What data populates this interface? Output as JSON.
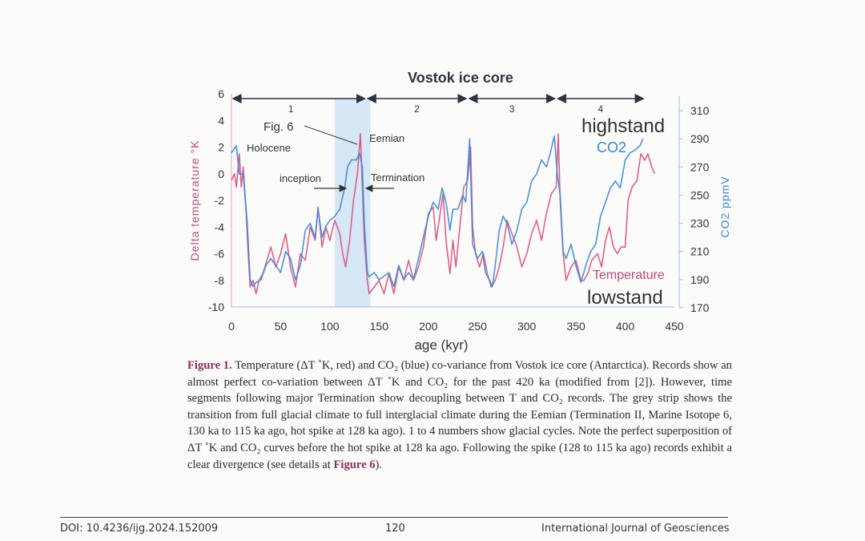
{
  "chart_data": {
    "type": "line",
    "title": "Vostok ice core",
    "xlabel": "age (kyr)",
    "ylabel": "Delta temperature °K",
    "y2label": "CO2 ppmV",
    "xlim": [
      0,
      450
    ],
    "ylim": [
      -10,
      6
    ],
    "y2lim": [
      170,
      320
    ],
    "xticks": [
      "0",
      "50",
      "100",
      "150",
      "200",
      "250",
      "300",
      "350",
      "400",
      "450"
    ],
    "yticks": [
      "-10",
      "-8",
      "-6",
      "-4",
      "-2",
      "0",
      "2",
      "4",
      "6"
    ],
    "y2ticks": [
      "170",
      "190",
      "210",
      "230",
      "250",
      "270",
      "290",
      "310"
    ],
    "grid": false,
    "colors": {
      "temperature": "#d9507e",
      "co2": "#3a86d4",
      "strip": "#cfe3f3"
    },
    "highlight_strip_kyr": [
      105,
      141
    ],
    "glacial_cycles": [
      {
        "label": "1",
        "from": 0,
        "to": 137
      },
      {
        "label": "2",
        "from": 137,
        "to": 240
      },
      {
        "label": "3",
        "from": 240,
        "to": 330
      },
      {
        "label": "4",
        "from": 330,
        "to": 420
      }
    ],
    "annotations": {
      "fig6": "Fig. 6",
      "eemian": "Eemian",
      "holocene": "Holocene",
      "inception": "inception",
      "termination": "Termination",
      "highstand": "highstand",
      "co2": "CO2",
      "temperature": "Temperature",
      "lowstand": "lowstand"
    },
    "series": [
      {
        "name": "Temperature",
        "axis": "left",
        "x": [
          0,
          3,
          5,
          8,
          10,
          12,
          15,
          17,
          19,
          22,
          25,
          28,
          32,
          36,
          40,
          45,
          50,
          55,
          60,
          65,
          70,
          75,
          80,
          85,
          88,
          92,
          96,
          100,
          105,
          110,
          113,
          116,
          120,
          124,
          128,
          131,
          133,
          135,
          138,
          140,
          145,
          150,
          155,
          160,
          165,
          170,
          175,
          180,
          185,
          190,
          195,
          200,
          205,
          208,
          212,
          215,
          218,
          222,
          225,
          228,
          232,
          236,
          240,
          243,
          245,
          248,
          252,
          256,
          260,
          264,
          268,
          272,
          276,
          280,
          285,
          290,
          295,
          300,
          305,
          310,
          315,
          320,
          325,
          330,
          332,
          334,
          337,
          340,
          345,
          350,
          355,
          358,
          362,
          366,
          372,
          376,
          380,
          384,
          388,
          392,
          396,
          400,
          403,
          407,
          412,
          416,
          420,
          423,
          427,
          430
        ],
        "y": [
          -0.5,
          0,
          -1,
          1.5,
          -1,
          0.5,
          -3,
          -6,
          -8.5,
          -8,
          -9,
          -8,
          -7.5,
          -6.5,
          -5.5,
          -7,
          -6,
          -4.5,
          -7,
          -8.5,
          -6,
          -6.5,
          -4,
          -5,
          -2.5,
          -5.5,
          -4,
          -5,
          -3.5,
          -4.5,
          -6,
          -7,
          -5,
          -2,
          0,
          3,
          -1,
          -5,
          -8,
          -9,
          -8.5,
          -8,
          -9,
          -7.5,
          -9,
          -7,
          -8,
          -6.5,
          -8,
          -7,
          -5.5,
          -3,
          -2.5,
          -5,
          -3,
          -1.5,
          -5,
          -7.5,
          -5,
          -7,
          -4,
          -1,
          -0.5,
          2,
          -4,
          -6,
          -7,
          -6,
          -7.5,
          -8.5,
          -8,
          -7,
          -5.5,
          -3.5,
          -4.5,
          -5.5,
          -7,
          -6,
          -4.5,
          -3.5,
          -5,
          -3,
          -1.5,
          -1,
          3,
          -2,
          -6,
          -8,
          -7,
          -6.5,
          -8,
          -8,
          -7.5,
          -6.5,
          -6,
          -7,
          -5,
          -4,
          -5.5,
          -6,
          -5.5,
          -5.5,
          -2,
          -1,
          -0.5,
          1.5,
          1,
          1.5,
          0.5,
          0
        ]
      },
      {
        "name": "CO2",
        "axis": "right",
        "x": [
          0,
          5,
          8,
          12,
          16,
          19,
          22,
          25,
          30,
          35,
          40,
          45,
          50,
          55,
          60,
          65,
          70,
          75,
          80,
          85,
          88,
          92,
          96,
          100,
          105,
          110,
          115,
          118,
          122,
          127,
          130,
          133,
          135,
          138,
          140,
          145,
          150,
          160,
          165,
          170,
          175,
          180,
          185,
          190,
          195,
          200,
          205,
          210,
          214,
          218,
          222,
          225,
          230,
          235,
          238,
          242,
          245,
          250,
          255,
          258,
          262,
          265,
          268,
          272,
          276,
          280,
          285,
          290,
          295,
          300,
          305,
          310,
          315,
          320,
          324,
          328,
          331,
          334,
          337,
          340,
          345,
          350,
          355,
          360,
          365,
          370,
          375,
          380,
          385,
          390,
          395,
          400,
          405,
          410,
          415,
          418
        ],
        "y": [
          280,
          285,
          265,
          265,
          230,
          190,
          185,
          188,
          190,
          200,
          205,
          200,
          195,
          210,
          205,
          190,
          200,
          225,
          230,
          220,
          240,
          220,
          228,
          232,
          235,
          240,
          255,
          270,
          275,
          275,
          280,
          270,
          230,
          195,
          192,
          195,
          190,
          195,
          185,
          200,
          190,
          195,
          190,
          205,
          220,
          235,
          245,
          240,
          255,
          245,
          225,
          240,
          240,
          250,
          245,
          290,
          215,
          205,
          210,
          195,
          190,
          185,
          200,
          225,
          235,
          230,
          215,
          225,
          240,
          245,
          260,
          265,
          275,
          270,
          280,
          292,
          265,
          250,
          210,
          205,
          215,
          200,
          188,
          200,
          210,
          215,
          235,
          245,
          255,
          260,
          255,
          275,
          280,
          282,
          285,
          290
        ]
      }
    ]
  },
  "caption": {
    "label": "Figure 1.",
    "text1": " Temperature (ΔT ˚K, red) and CO₂ (blue) co-variance from Vostok ice core (Antarctica). Records show an almost perfect co-variation between ΔT ˚K and CO₂ for the past 420 ka (modified from [2]). However, time segments following major Termination show decoupling between T and CO₂ records. The grey strip shows the transition from full glacial climate to full interglacial climate during the Eemian (Termination II, Marine Isotope 6, 130 ka to 115 ka ago, hot spike at 128 ka ago). 1 to 4 numbers show glacial cycles. Note the perfect superposition of ΔT ˚K and CO₂ curves before the hot spike at 128 ka ago. Following the spike (128 to 115 ka ago) records exhibit a clear divergence (see details at ",
    "link": "Figure 6",
    "text2": ")."
  },
  "footer": {
    "doi": "DOI: 10.4236/ijg.2024.152009",
    "page": "120",
    "journal": "International Journal of Geosciences"
  }
}
